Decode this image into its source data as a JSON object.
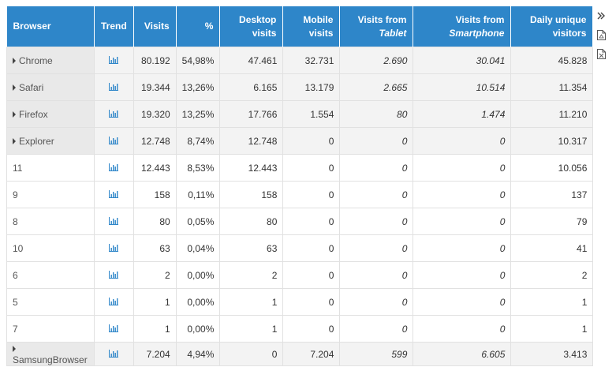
{
  "headers": {
    "browser": "Browser",
    "trend": "Trend",
    "visits": "Visits",
    "percent": "%",
    "desktop_1": "Desktop",
    "desktop_2": "visits",
    "mobile_1": "Mobile",
    "mobile_2": "visits",
    "tablet_1": "Visits from",
    "tablet_2": "Tablet",
    "smartphone_1": "Visits from",
    "smartphone_2": "Smartphone",
    "unique_1": "Daily unique",
    "unique_2": "visitors"
  },
  "rows": [
    {
      "name": "Chrome",
      "expandable": true,
      "visits": "80.192",
      "pct": "54,98%",
      "desktop": "47.461",
      "mobile": "32.731",
      "tablet": "2.690",
      "smartphone": "30.041",
      "unique": "45.828"
    },
    {
      "name": "Safari",
      "expandable": true,
      "visits": "19.344",
      "pct": "13,26%",
      "desktop": "6.165",
      "mobile": "13.179",
      "tablet": "2.665",
      "smartphone": "10.514",
      "unique": "11.354"
    },
    {
      "name": "Firefox",
      "expandable": true,
      "visits": "19.320",
      "pct": "13,25%",
      "desktop": "17.766",
      "mobile": "1.554",
      "tablet": "80",
      "smartphone": "1.474",
      "unique": "11.210"
    },
    {
      "name": "Explorer",
      "expandable": true,
      "visits": "12.748",
      "pct": "8,74%",
      "desktop": "12.748",
      "mobile": "0",
      "tablet": "0",
      "smartphone": "0",
      "unique": "10.317"
    },
    {
      "name": "11",
      "expandable": false,
      "visits": "12.443",
      "pct": "8,53%",
      "desktop": "12.443",
      "mobile": "0",
      "tablet": "0",
      "smartphone": "0",
      "unique": "10.056"
    },
    {
      "name": "9",
      "expandable": false,
      "visits": "158",
      "pct": "0,11%",
      "desktop": "158",
      "mobile": "0",
      "tablet": "0",
      "smartphone": "0",
      "unique": "137"
    },
    {
      "name": "8",
      "expandable": false,
      "visits": "80",
      "pct": "0,05%",
      "desktop": "80",
      "mobile": "0",
      "tablet": "0",
      "smartphone": "0",
      "unique": "79"
    },
    {
      "name": "10",
      "expandable": false,
      "visits": "63",
      "pct": "0,04%",
      "desktop": "63",
      "mobile": "0",
      "tablet": "0",
      "smartphone": "0",
      "unique": "41"
    },
    {
      "name": "6",
      "expandable": false,
      "visits": "2",
      "pct": "0,00%",
      "desktop": "2",
      "mobile": "0",
      "tablet": "0",
      "smartphone": "0",
      "unique": "2"
    },
    {
      "name": "5",
      "expandable": false,
      "visits": "1",
      "pct": "0,00%",
      "desktop": "1",
      "mobile": "0",
      "tablet": "0",
      "smartphone": "0",
      "unique": "1"
    },
    {
      "name": "7",
      "expandable": false,
      "visits": "1",
      "pct": "0,00%",
      "desktop": "1",
      "mobile": "0",
      "tablet": "0",
      "smartphone": "0",
      "unique": "1"
    },
    {
      "name": "SamsungBrowser",
      "expandable": true,
      "visits": "7.204",
      "pct": "4,94%",
      "desktop": "0",
      "mobile": "7.204",
      "tablet": "599",
      "smartphone": "6.605",
      "unique": "3.413"
    }
  ],
  "icons": {
    "trend": "bar-chart-icon",
    "expand": "double-chevron-right-icon",
    "pdf": "pdf-file-icon",
    "excel": "excel-file-icon"
  },
  "colors": {
    "header_bg": "#2e86c9",
    "header_text": "#ffffff",
    "trend_icon": "#2e86c9",
    "parent_row_bg": "#f3f3f3",
    "border": "#e1e1e1"
  }
}
